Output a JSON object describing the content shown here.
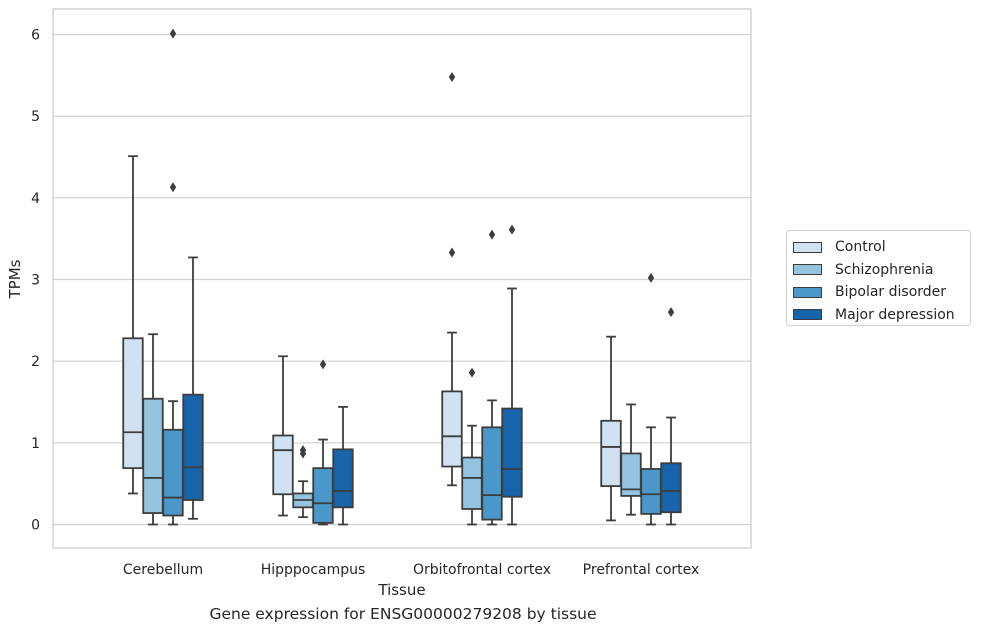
{
  "caption": "Gene expression for ENSG00000279208 by tissue",
  "chart_data": {
    "type": "box",
    "xlabel": "Tissue",
    "ylabel": "TPMs",
    "ylim": [
      -0.3,
      6.3
    ],
    "yticks": [
      0,
      1,
      2,
      3,
      4,
      5,
      6
    ],
    "grid": "horizontal",
    "legend_position": "right",
    "categories": [
      "Cerebellum",
      "Hipppocampus",
      "Orbitofrontal cortex",
      "Prefrontal cortex"
    ],
    "series": [
      {
        "name": "Control",
        "color": "#d0e1f2",
        "boxes": [
          {
            "whislo": 0.38,
            "q1": 0.69,
            "med": 1.13,
            "q3": 2.28,
            "whishi": 4.51,
            "fliers": []
          },
          {
            "whislo": 0.11,
            "q1": 0.37,
            "med": 0.91,
            "q3": 1.09,
            "whishi": 2.06,
            "fliers": []
          },
          {
            "whislo": 0.48,
            "q1": 0.71,
            "med": 1.08,
            "q3": 1.63,
            "whishi": 2.35,
            "fliers": [
              3.33,
              5.48
            ]
          },
          {
            "whislo": 0.05,
            "q1": 0.47,
            "med": 0.95,
            "q3": 1.27,
            "whishi": 2.3,
            "fliers": []
          }
        ]
      },
      {
        "name": "Schizophrenia",
        "color": "#94c4df",
        "boxes": [
          {
            "whislo": 0.0,
            "q1": 0.14,
            "med": 0.57,
            "q3": 1.54,
            "whishi": 2.33,
            "fliers": []
          },
          {
            "whislo": 0.09,
            "q1": 0.21,
            "med": 0.3,
            "q3": 0.38,
            "whishi": 0.53,
            "fliers": [
              0.87,
              0.91
            ]
          },
          {
            "whislo": 0.0,
            "q1": 0.19,
            "med": 0.57,
            "q3": 0.82,
            "whishi": 1.21,
            "fliers": [
              1.86
            ]
          },
          {
            "whislo": 0.12,
            "q1": 0.35,
            "med": 0.43,
            "q3": 0.87,
            "whishi": 1.47,
            "fliers": []
          }
        ]
      },
      {
        "name": "Bipolar disorder",
        "color": "#4a98c9",
        "boxes": [
          {
            "whislo": 0.0,
            "q1": 0.11,
            "med": 0.33,
            "q3": 1.16,
            "whishi": 1.51,
            "fliers": [
              4.13,
              6.01
            ]
          },
          {
            "whislo": 0.0,
            "q1": 0.02,
            "med": 0.26,
            "q3": 0.69,
            "whishi": 1.04,
            "fliers": [
              1.96
            ]
          },
          {
            "whislo": 0.0,
            "q1": 0.06,
            "med": 0.36,
            "q3": 1.19,
            "whishi": 1.52,
            "fliers": [
              3.55
            ]
          },
          {
            "whislo": 0.0,
            "q1": 0.13,
            "med": 0.37,
            "q3": 0.68,
            "whishi": 1.19,
            "fliers": [
              3.02
            ]
          }
        ]
      },
      {
        "name": "Major depression",
        "color": "#1764ab",
        "boxes": [
          {
            "whislo": 0.07,
            "q1": 0.3,
            "med": 0.7,
            "q3": 1.59,
            "whishi": 3.27,
            "fliers": []
          },
          {
            "whislo": 0.0,
            "q1": 0.21,
            "med": 0.41,
            "q3": 0.92,
            "whishi": 1.44,
            "fliers": []
          },
          {
            "whislo": 0.0,
            "q1": 0.34,
            "med": 0.68,
            "q3": 1.42,
            "whishi": 2.89,
            "fliers": [
              3.61
            ]
          },
          {
            "whislo": 0.0,
            "q1": 0.15,
            "med": 0.41,
            "q3": 0.75,
            "whishi": 1.31,
            "fliers": [
              2.6
            ]
          }
        ]
      }
    ]
  }
}
